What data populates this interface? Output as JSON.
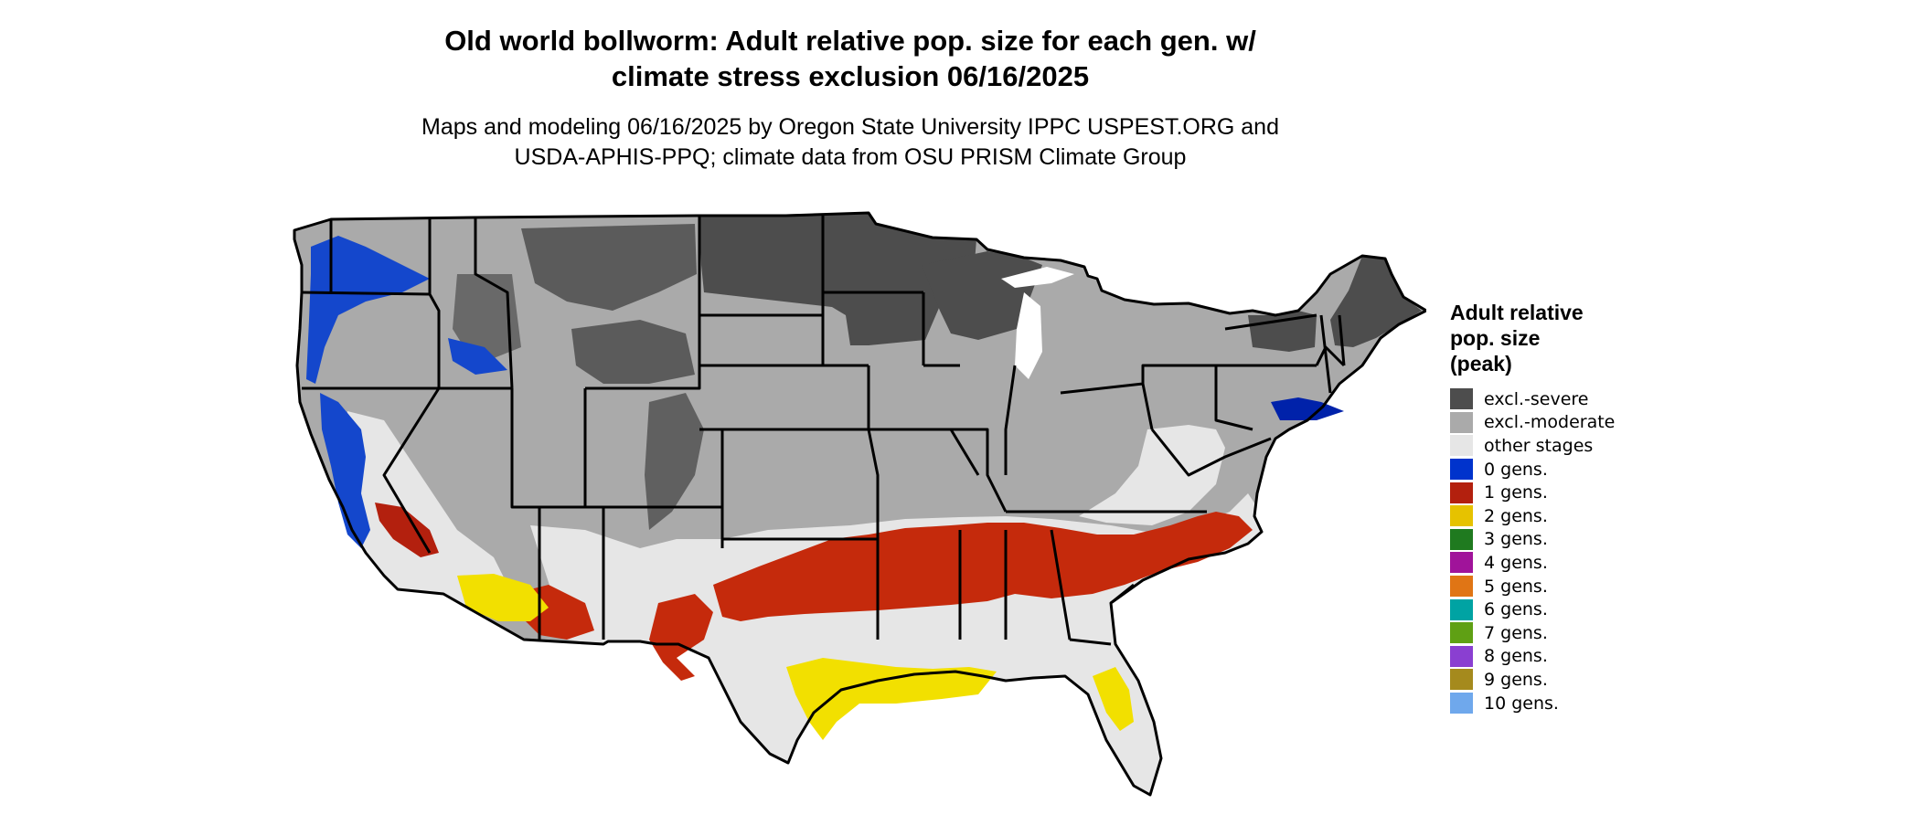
{
  "title_line1": "Old world bollworm: Adult relative pop. size for each gen. w/",
  "title_line2": "climate stress exclusion 06/16/2025",
  "subtitle_line1": "Maps and modeling 06/16/2025 by Oregon State University IPPC USPEST.ORG and",
  "subtitle_line2": "USDA-APHIS-PPQ; climate data from OSU PRISM Climate Group",
  "legend": {
    "title_line1": "Adult relative",
    "title_line2": "pop. size",
    "title_line3": "(peak)",
    "items": [
      {
        "label": "excl.-severe",
        "color": "#4d4d4d"
      },
      {
        "label": "excl.-moderate",
        "color": "#aaaaaa"
      },
      {
        "label": "other stages",
        "color": "#e6e6e6"
      },
      {
        "label": "0 gens.",
        "color": "#0033cc"
      },
      {
        "label": "1 gens.",
        "color": "#b3200e"
      },
      {
        "label": "2 gens.",
        "color": "#e6c200"
      },
      {
        "label": "3 gens.",
        "color": "#1f7a1f"
      },
      {
        "label": "4 gens.",
        "color": "#a0139a"
      },
      {
        "label": "5 gens.",
        "color": "#e07515"
      },
      {
        "label": "6 gens.",
        "color": "#00a3a3"
      },
      {
        "label": "7 gens.",
        "color": "#5fa014"
      },
      {
        "label": "8 gens.",
        "color": "#8a3fd1"
      },
      {
        "label": "9 gens.",
        "color": "#a58a1d"
      },
      {
        "label": "10 gens.",
        "color": "#6fa8ec"
      }
    ]
  }
}
